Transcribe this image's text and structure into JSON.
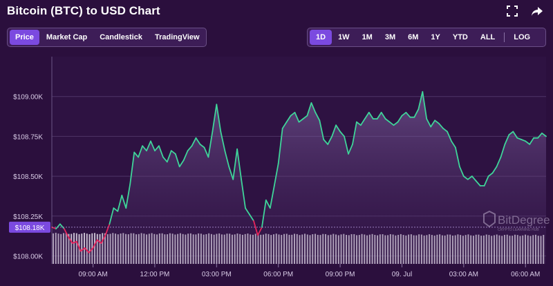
{
  "header": {
    "title": "Bitcoin (BTC) to USD Chart",
    "icons": [
      "fullscreen-icon",
      "share-icon"
    ]
  },
  "chart_tabs": [
    {
      "label": "Price",
      "active": true
    },
    {
      "label": "Market Cap",
      "active": false
    },
    {
      "label": "Candlestick",
      "active": false
    },
    {
      "label": "TradingView",
      "active": false
    }
  ],
  "range_tabs": [
    {
      "label": "1D",
      "active": true
    },
    {
      "label": "1W",
      "active": false
    },
    {
      "label": "1M",
      "active": false
    },
    {
      "label": "3M",
      "active": false
    },
    {
      "label": "6M",
      "active": false
    },
    {
      "label": "1Y",
      "active": false
    },
    {
      "label": "YTD",
      "active": false
    },
    {
      "label": "ALL",
      "active": false
    }
  ],
  "log_label": "LOG",
  "colors": {
    "background": "#2b0f3d",
    "up_line": "#3fd59a",
    "down_line": "#e8245c",
    "accent": "#7b4ae0",
    "volume_bar": "#d9d2e0"
  },
  "watermark": {
    "brand": "BitDegree",
    "tagline": "CRYPTO LEARNING HUB"
  },
  "chart_data": {
    "type": "line",
    "title": "",
    "xlabel": "",
    "ylabel": "",
    "ylim": [
      107.95,
      109.25
    ],
    "reference_value": 108.18,
    "reference_label": "$108.18K",
    "y_ticks": [
      {
        "value": 108.0,
        "label": "$108.00K"
      },
      {
        "value": 108.25,
        "label": "$108.25K"
      },
      {
        "value": 108.5,
        "label": "$108.50K"
      },
      {
        "value": 108.75,
        "label": "$108.75K"
      },
      {
        "value": 109.0,
        "label": "$109.00K"
      }
    ],
    "x_range": [
      0,
      24
    ],
    "x_ticks": [
      {
        "value": 2.0,
        "label": "09:00 AM"
      },
      {
        "value": 5.0,
        "label": "12:00 PM"
      },
      {
        "value": 8.0,
        "label": "03:00 PM"
      },
      {
        "value": 11.0,
        "label": "06:00 PM"
      },
      {
        "value": 14.0,
        "label": "09:00 PM"
      },
      {
        "value": 17.0,
        "label": "09. Jul"
      },
      {
        "value": 20.0,
        "label": "03:00 AM"
      },
      {
        "value": 23.0,
        "label": "06:00 AM"
      }
    ],
    "series": [
      {
        "values": [
          [
            0.0,
            108.18
          ],
          [
            0.2,
            108.17
          ],
          [
            0.4,
            108.2
          ],
          [
            0.6,
            108.17
          ],
          [
            0.8,
            108.12
          ],
          [
            1.0,
            108.08
          ],
          [
            1.2,
            108.09
          ],
          [
            1.4,
            108.03
          ],
          [
            1.6,
            108.05
          ],
          [
            1.8,
            108.02
          ],
          [
            2.0,
            108.05
          ],
          [
            2.2,
            108.1
          ],
          [
            2.4,
            108.08
          ],
          [
            2.6,
            108.13
          ],
          [
            2.8,
            108.2
          ],
          [
            3.0,
            108.3
          ],
          [
            3.2,
            108.28
          ],
          [
            3.4,
            108.38
          ],
          [
            3.6,
            108.3
          ],
          [
            3.8,
            108.45
          ],
          [
            4.0,
            108.65
          ],
          [
            4.2,
            108.62
          ],
          [
            4.4,
            108.69
          ],
          [
            4.6,
            108.66
          ],
          [
            4.8,
            108.72
          ],
          [
            5.0,
            108.66
          ],
          [
            5.2,
            108.69
          ],
          [
            5.4,
            108.62
          ],
          [
            5.6,
            108.59
          ],
          [
            5.8,
            108.66
          ],
          [
            6.0,
            108.64
          ],
          [
            6.2,
            108.56
          ],
          [
            6.4,
            108.6
          ],
          [
            6.6,
            108.66
          ],
          [
            6.8,
            108.69
          ],
          [
            7.0,
            108.74
          ],
          [
            7.2,
            108.7
          ],
          [
            7.4,
            108.68
          ],
          [
            7.6,
            108.62
          ],
          [
            7.8,
            108.78
          ],
          [
            8.0,
            108.95
          ],
          [
            8.2,
            108.78
          ],
          [
            8.4,
            108.66
          ],
          [
            8.6,
            108.56
          ],
          [
            8.8,
            108.48
          ],
          [
            9.0,
            108.67
          ],
          [
            9.2,
            108.48
          ],
          [
            9.4,
            108.3
          ],
          [
            9.6,
            108.26
          ],
          [
            9.8,
            108.22
          ],
          [
            10.0,
            108.13
          ],
          [
            10.2,
            108.18
          ],
          [
            10.4,
            108.35
          ],
          [
            10.6,
            108.3
          ],
          [
            10.8,
            108.44
          ],
          [
            11.0,
            108.58
          ],
          [
            11.2,
            108.8
          ],
          [
            11.4,
            108.84
          ],
          [
            11.6,
            108.88
          ],
          [
            11.8,
            108.9
          ],
          [
            12.0,
            108.84
          ],
          [
            12.2,
            108.86
          ],
          [
            12.4,
            108.88
          ],
          [
            12.6,
            108.96
          ],
          [
            12.8,
            108.9
          ],
          [
            13.0,
            108.85
          ],
          [
            13.2,
            108.73
          ],
          [
            13.4,
            108.7
          ],
          [
            13.6,
            108.75
          ],
          [
            13.8,
            108.82
          ],
          [
            14.0,
            108.78
          ],
          [
            14.2,
            108.75
          ],
          [
            14.4,
            108.64
          ],
          [
            14.6,
            108.7
          ],
          [
            14.8,
            108.84
          ],
          [
            15.0,
            108.82
          ],
          [
            15.2,
            108.86
          ],
          [
            15.4,
            108.9
          ],
          [
            15.6,
            108.86
          ],
          [
            15.8,
            108.86
          ],
          [
            16.0,
            108.9
          ],
          [
            16.2,
            108.86
          ],
          [
            16.4,
            108.84
          ],
          [
            16.6,
            108.82
          ],
          [
            16.8,
            108.84
          ],
          [
            17.0,
            108.88
          ],
          [
            17.2,
            108.9
          ],
          [
            17.4,
            108.87
          ],
          [
            17.6,
            108.87
          ],
          [
            17.8,
            108.92
          ],
          [
            18.0,
            109.03
          ],
          [
            18.2,
            108.86
          ],
          [
            18.4,
            108.81
          ],
          [
            18.6,
            108.85
          ],
          [
            18.8,
            108.83
          ],
          [
            19.0,
            108.8
          ],
          [
            19.2,
            108.78
          ],
          [
            19.4,
            108.72
          ],
          [
            19.6,
            108.68
          ],
          [
            19.8,
            108.56
          ],
          [
            20.0,
            108.5
          ],
          [
            20.2,
            108.48
          ],
          [
            20.4,
            108.5
          ],
          [
            20.6,
            108.47
          ],
          [
            20.8,
            108.44
          ],
          [
            21.0,
            108.44
          ],
          [
            21.2,
            108.5
          ],
          [
            21.4,
            108.52
          ],
          [
            21.6,
            108.56
          ],
          [
            21.8,
            108.62
          ],
          [
            22.0,
            108.7
          ],
          [
            22.2,
            108.76
          ],
          [
            22.4,
            108.78
          ],
          [
            22.6,
            108.74
          ],
          [
            22.8,
            108.73
          ],
          [
            23.0,
            108.72
          ],
          [
            23.2,
            108.7
          ],
          [
            23.4,
            108.74
          ],
          [
            23.6,
            108.74
          ],
          [
            23.8,
            108.77
          ],
          [
            24.0,
            108.75
          ]
        ]
      }
    ],
    "volume": {
      "description_free": true,
      "start": 0.92,
      "end": 0.86,
      "ripple": 0.02
    },
    "grid": true,
    "legend": "none"
  }
}
